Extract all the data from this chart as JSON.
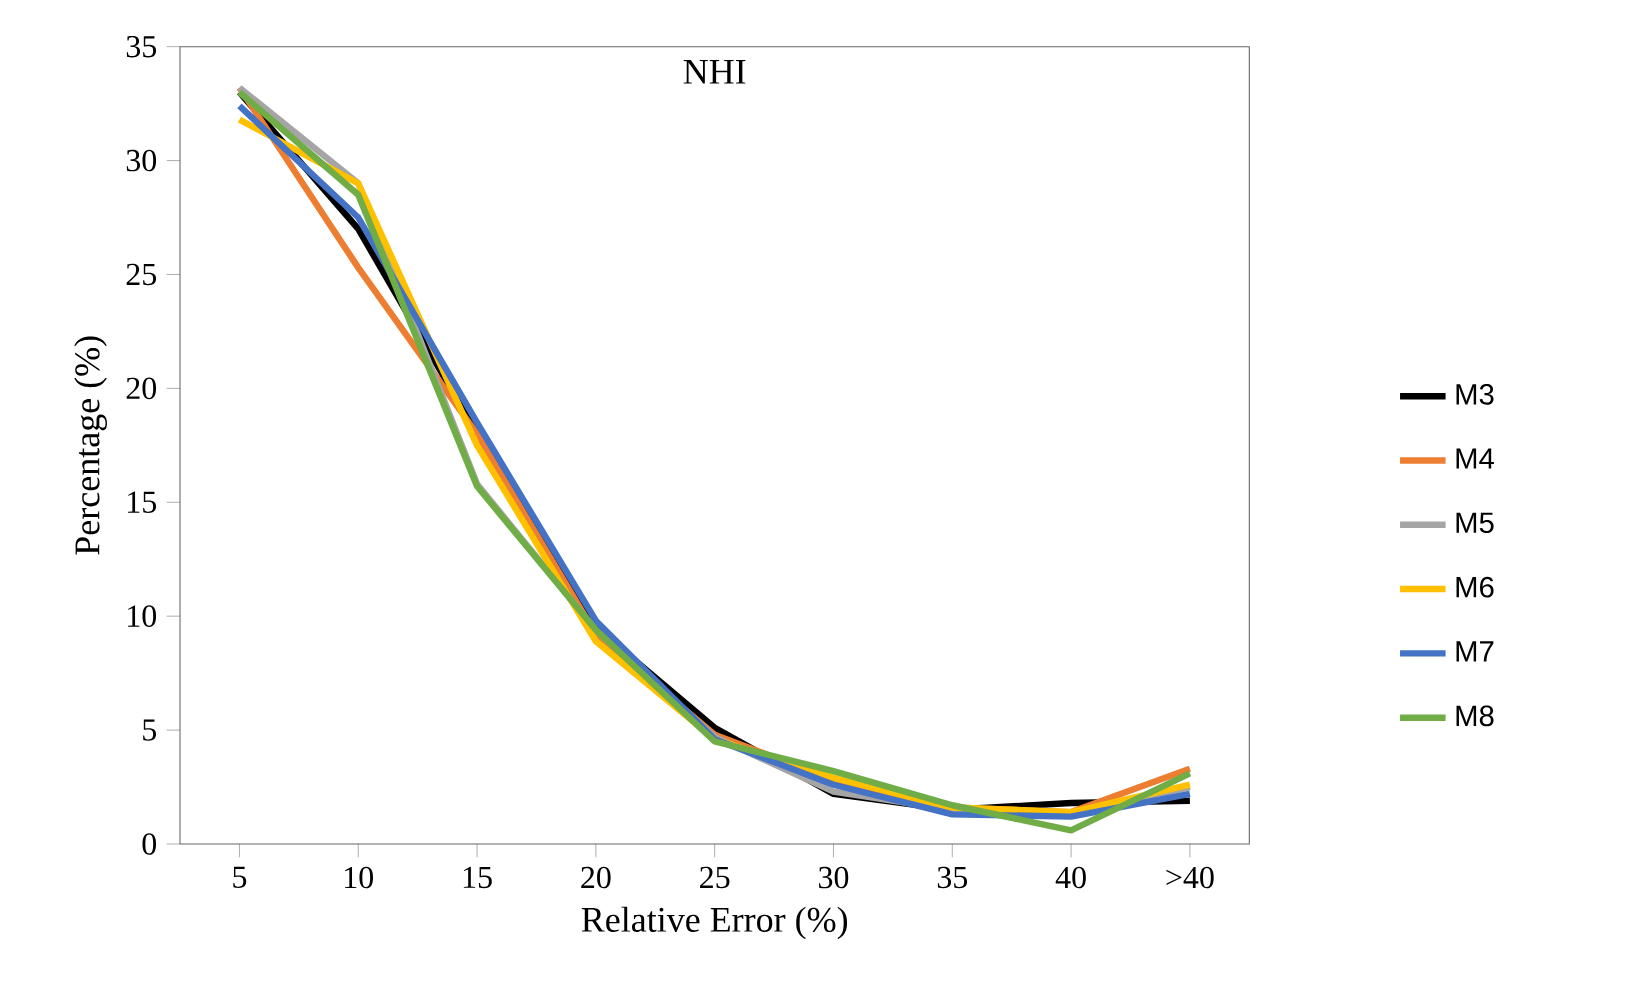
{
  "chart_data": {
    "type": "line",
    "title": "NHI",
    "xlabel": "Relative Error (%)",
    "ylabel": "Percentage (%)",
    "categories": [
      "5",
      "10",
      "15",
      "20",
      "25",
      "30",
      "35",
      "40",
      ">40"
    ],
    "ylim": [
      0,
      35
    ],
    "yticks": [
      0,
      5,
      10,
      15,
      20,
      25,
      30,
      35
    ],
    "grid": false,
    "legend": "right",
    "marker": "none",
    "line_style": "solid",
    "series": [
      {
        "name": "M3",
        "color": "#000000",
        "values": [
          33.0,
          27.0,
          18.0,
          9.5,
          5.1,
          2.2,
          1.5,
          1.8,
          1.9
        ]
      },
      {
        "name": "M4",
        "color": "#ed7d31",
        "values": [
          33.2,
          25.3,
          18.0,
          9.2,
          4.8,
          2.8,
          1.6,
          1.4,
          3.3
        ]
      },
      {
        "name": "M5",
        "color": "#a5a5a5",
        "values": [
          33.2,
          29.0,
          15.8,
          9.4,
          4.7,
          2.3,
          1.5,
          1.3,
          2.5
        ]
      },
      {
        "name": "M6",
        "color": "#ffc000",
        "values": [
          31.8,
          29.0,
          17.5,
          8.9,
          4.6,
          2.9,
          1.6,
          1.4,
          2.6
        ]
      },
      {
        "name": "M7",
        "color": "#4472c4",
        "values": [
          32.4,
          27.5,
          18.5,
          9.8,
          4.6,
          2.6,
          1.3,
          1.2,
          2.2
        ]
      },
      {
        "name": "M8",
        "color": "#70ad47",
        "values": [
          33.0,
          28.5,
          15.7,
          9.4,
          4.5,
          3.2,
          1.7,
          0.6,
          3.1
        ]
      }
    ]
  }
}
